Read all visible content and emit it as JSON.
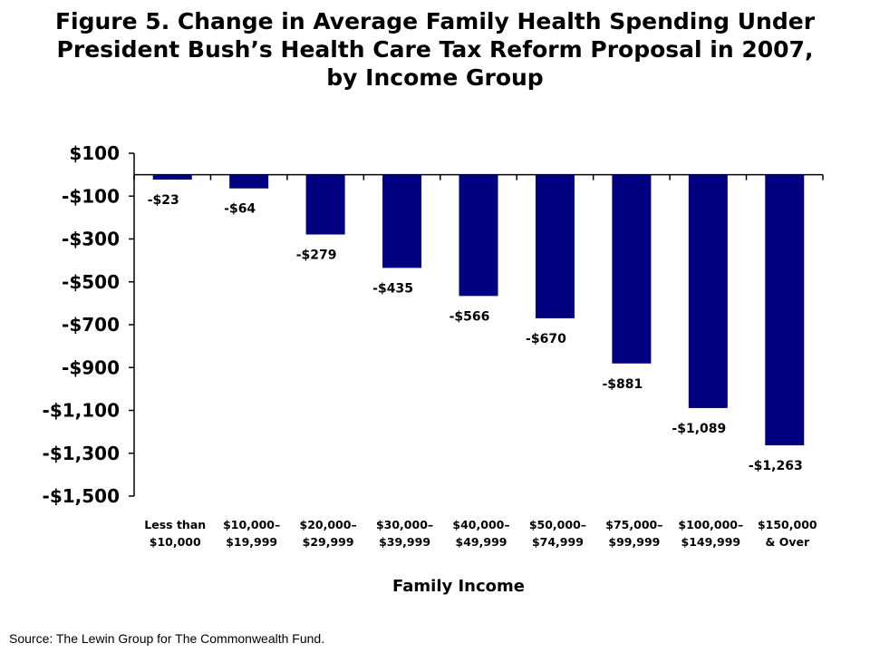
{
  "title_lines": [
    "Figure 5. Change in Average Family Health Spending Under",
    "President Bush’s Health Care Tax Reform Proposal in 2007,",
    "by Income Group"
  ],
  "source": "Source: The Lewin Group for The Commonwealth Fund.",
  "colors": {
    "bar": "#000080",
    "axis": "#000000",
    "text": "#000000"
  },
  "chart_data": {
    "type": "bar",
    "title": "Figure 5. Change in Average Family Health Spending Under President Bush’s Health Care Tax Reform Proposal in 2007, by Income Group",
    "xlabel": "Family Income",
    "ylabel": "",
    "ylim": [
      -1500,
      100
    ],
    "yticks": [
      100,
      -100,
      -300,
      -500,
      -700,
      -900,
      -1100,
      -1300,
      -1500
    ],
    "ytick_labels": [
      "$100",
      "-$100",
      "-$300",
      "-$500",
      "-$700",
      "-$900",
      "-$1,100",
      "-$1,300",
      "-$1,500"
    ],
    "categories": [
      [
        "Less than",
        "$10,000"
      ],
      [
        "$10,000–",
        "$19,999"
      ],
      [
        "$20,000–",
        "$29,999"
      ],
      [
        "$30,000–",
        "$39,999"
      ],
      [
        "$40,000–",
        "$49,999"
      ],
      [
        "$50,000–",
        "$74,999"
      ],
      [
        "$75,000–",
        "$99,999"
      ],
      [
        "$100,000–",
        "$149,999"
      ],
      [
        "$150,000",
        "& Over"
      ]
    ],
    "values": [
      -23,
      -64,
      -279,
      -435,
      -566,
      -670,
      -881,
      -1089,
      -1263
    ],
    "data_labels": [
      "-$23",
      "-$64",
      "-$279",
      "-$435",
      "-$566",
      "-$670",
      "-$881",
      "-$1,089",
      "-$1,263"
    ],
    "grid": false,
    "legend": "none"
  }
}
